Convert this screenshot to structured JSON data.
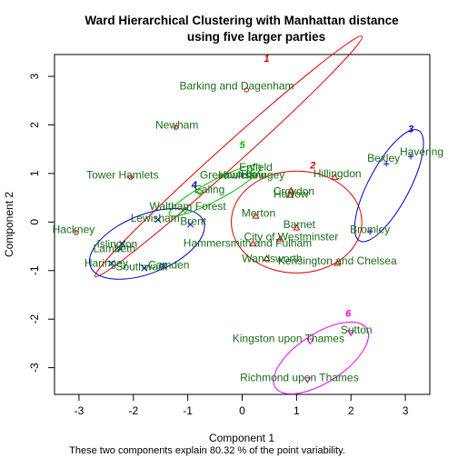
{
  "chart_data": {
    "type": "scatter",
    "title_line1": "Ward Hierarchical Clustering with Manhattan distance",
    "title_line2": "using five larger parties",
    "xlabel": "Component 1",
    "ylabel": "Component 2",
    "caption": "These two components explain 80.32 % of the point variability.",
    "xlim": [
      -3.45,
      3.45
    ],
    "ylim": [
      -3.55,
      3.45
    ],
    "xticks": [
      -3,
      -2,
      -1,
      0,
      1,
      2,
      3
    ],
    "yticks": [
      -3,
      -2,
      -1,
      0,
      1,
      2,
      3
    ],
    "colors": {
      "cluster1": "#dd0000",
      "cluster2": "#dd0000",
      "cluster3": "#0000cc",
      "cluster4": "#0000cc",
      "cluster5": "#00bb00",
      "cluster6": "#ee00ee",
      "label": "#1a6b1a",
      "point": "#000000"
    },
    "clusters": [
      {
        "id": "1",
        "label": "1",
        "color": "#dd0000",
        "cx": -0.25,
        "cy": 1.35,
        "rx": 3.3,
        "ry": 0.22,
        "angle": 42,
        "label_x": 0.45,
        "label_y": 3.3
      },
      {
        "id": "2",
        "label": "2",
        "color": "#dd0000",
        "cx": 1.0,
        "cy": 0.0,
        "rx": 1.2,
        "ry": 1.05,
        "angle": 0,
        "label_x": 1.3,
        "label_y": 1.1
      },
      {
        "id": "3",
        "label": "3",
        "color": "#0000cc",
        "cx": 2.7,
        "cy": 0.75,
        "rx": 1.15,
        "ry": 0.42,
        "angle": 62,
        "label_x": 3.1,
        "label_y": 1.85
      },
      {
        "id": "4",
        "label": "4",
        "color": "#0000cc",
        "cx": -1.75,
        "cy": -0.45,
        "rx": 1.12,
        "ry": 0.6,
        "angle": 22,
        "label_x": -0.88,
        "label_y": 0.7
      },
      {
        "id": "5",
        "label": "5",
        "color": "#00bb00",
        "cx": -0.5,
        "cy": 0.65,
        "rx": 0.95,
        "ry": 0.2,
        "angle": 28,
        "label_x": 0.0,
        "label_y": 1.52
      },
      {
        "id": "6",
        "label": "6",
        "color": "#ee00ee",
        "cx": 1.45,
        "cy": -2.8,
        "rx": 1.0,
        "ry": 0.5,
        "angle": 33,
        "label_x": 1.95,
        "label_y": -1.95
      }
    ],
    "points": [
      {
        "name": "Barking and Dagenham",
        "x": 0.08,
        "y": 2.72,
        "shape": "circle",
        "color": "#dd0000",
        "lx": -0.1,
        "ly": 2.8
      },
      {
        "name": "Newham",
        "x": -1.22,
        "y": 1.95,
        "shape": "circle",
        "color": "#dd0000",
        "lx": -1.2,
        "ly": 2.0
      },
      {
        "name": "Tower Hamlets",
        "x": -2.05,
        "y": 0.92,
        "shape": "circle",
        "color": "#dd0000",
        "lx": -2.2,
        "ly": 0.97
      },
      {
        "name": "Hackney",
        "x": -3.05,
        "y": -0.22,
        "shape": "circle",
        "color": "#dd0000",
        "lx": -3.1,
        "ly": -0.15
      },
      {
        "name": "Enfield",
        "x": 0.15,
        "y": 1.08,
        "shape": "diamond",
        "color": "#00bb00",
        "lx": 0.25,
        "ly": 1.13
      },
      {
        "name": "Greenwich",
        "x": -0.3,
        "y": 0.95,
        "shape": "diamond",
        "color": "#00bb00",
        "lx": -0.3,
        "ly": 0.97
      },
      {
        "name": "Hounslow",
        "x": -0.05,
        "y": 0.98,
        "shape": "diamond",
        "color": "#00bb00",
        "lx": 0.0,
        "ly": 0.97
      },
      {
        "name": "Haringey",
        "x": 0.22,
        "y": 0.97,
        "shape": "diamond",
        "color": "#00bb00",
        "lx": 0.38,
        "ly": 0.97
      },
      {
        "name": "Ealing",
        "x": -0.78,
        "y": 0.62,
        "shape": "diamond",
        "color": "#00bb00",
        "lx": -0.6,
        "ly": 0.67
      },
      {
        "name": "Waltham Forest",
        "x": -1.05,
        "y": 0.25,
        "shape": "diamond",
        "color": "#00bb00",
        "lx": -1.0,
        "ly": 0.32
      },
      {
        "name": "Hillingdon",
        "x": 1.7,
        "y": 0.92,
        "shape": "triangle",
        "color": "#dd0000",
        "lx": 1.75,
        "ly": 1.0
      },
      {
        "name": "Croydon",
        "x": 0.9,
        "y": 0.65,
        "shape": "triangle",
        "color": "#dd0000",
        "lx": 0.95,
        "ly": 0.63
      },
      {
        "name": "Harrow",
        "x": 0.88,
        "y": 0.55,
        "shape": "triangle",
        "color": "#dd0000",
        "lx": 0.9,
        "ly": 0.58
      },
      {
        "name": "Merton",
        "x": 0.25,
        "y": 0.12,
        "shape": "triangle",
        "color": "#dd0000",
        "lx": 0.3,
        "ly": 0.18
      },
      {
        "name": "Barnet",
        "x": 1.0,
        "y": -0.12,
        "shape": "triangle",
        "color": "#dd0000",
        "lx": 1.05,
        "ly": -0.05
      },
      {
        "name": "City of Westminster",
        "x": 0.7,
        "y": -0.35,
        "shape": "triangle",
        "color": "#dd0000",
        "lx": 0.9,
        "ly": -0.3
      },
      {
        "name": "Hammersmith and Fulham",
        "x": 0.2,
        "y": -0.45,
        "shape": "triangle",
        "color": "#dd0000",
        "lx": 0.1,
        "ly": -0.43
      },
      {
        "name": "Wandsworth",
        "x": 0.45,
        "y": -0.75,
        "shape": "triangle",
        "color": "#dd0000",
        "lx": 0.55,
        "ly": -0.75
      },
      {
        "name": "Kensington and Chelsea",
        "x": 1.75,
        "y": -0.85,
        "shape": "triangle",
        "color": "#dd0000",
        "lx": 1.75,
        "ly": -0.8
      },
      {
        "name": "Bexley",
        "x": 2.65,
        "y": 1.2,
        "shape": "plus",
        "color": "#0000cc",
        "lx": 2.6,
        "ly": 1.32
      },
      {
        "name": "Havering",
        "x": 3.1,
        "y": 1.35,
        "shape": "plus",
        "color": "#0000cc",
        "lx": 3.3,
        "ly": 1.45
      },
      {
        "name": "Bromley",
        "x": 2.35,
        "y": -0.2,
        "shape": "plus",
        "color": "#0000cc",
        "lx": 2.35,
        "ly": -0.15
      },
      {
        "name": "Lewisham",
        "x": -1.55,
        "y": 0.05,
        "shape": "cross",
        "color": "#0000cc",
        "lx": -1.6,
        "ly": 0.08
      },
      {
        "name": "Brent",
        "x": -0.95,
        "y": -0.05,
        "shape": "cross",
        "color": "#0000cc",
        "lx": -0.9,
        "ly": 0.02
      },
      {
        "name": "Islington",
        "x": -2.2,
        "y": -0.45,
        "shape": "cross",
        "color": "#0000cc",
        "lx": -2.3,
        "ly": -0.45
      },
      {
        "name": "Lambeth",
        "x": -2.25,
        "y": -0.55,
        "shape": "cross",
        "color": "#0000cc",
        "lx": -2.35,
        "ly": -0.55
      },
      {
        "name": "Haringey",
        "x": -2.4,
        "y": -0.85,
        "shape": "cross",
        "color": "#0000cc",
        "lx": -2.5,
        "ly": -0.85
      },
      {
        "name": "Southwark",
        "x": -1.8,
        "y": -0.95,
        "shape": "cross",
        "color": "#0000cc",
        "lx": -1.85,
        "ly": -0.92
      },
      {
        "name": "Camden",
        "x": -1.45,
        "y": -0.9,
        "shape": "cross",
        "color": "#0000cc",
        "lx": -1.35,
        "ly": -0.88
      },
      {
        "name": "Sutton",
        "x": 2.0,
        "y": -2.28,
        "shape": "triangle-down",
        "color": "#ee00ee",
        "lx": 2.1,
        "ly": -2.22
      },
      {
        "name": "Kingston upon Thames",
        "x": 1.25,
        "y": -2.45,
        "shape": "triangle-down",
        "color": "#ee00ee",
        "lx": 0.85,
        "ly": -2.4
      },
      {
        "name": "Richmond upon Thames",
        "x": 1.2,
        "y": -3.25,
        "shape": "triangle-down",
        "color": "#ee00ee",
        "lx": 1.05,
        "ly": -3.2
      }
    ]
  }
}
